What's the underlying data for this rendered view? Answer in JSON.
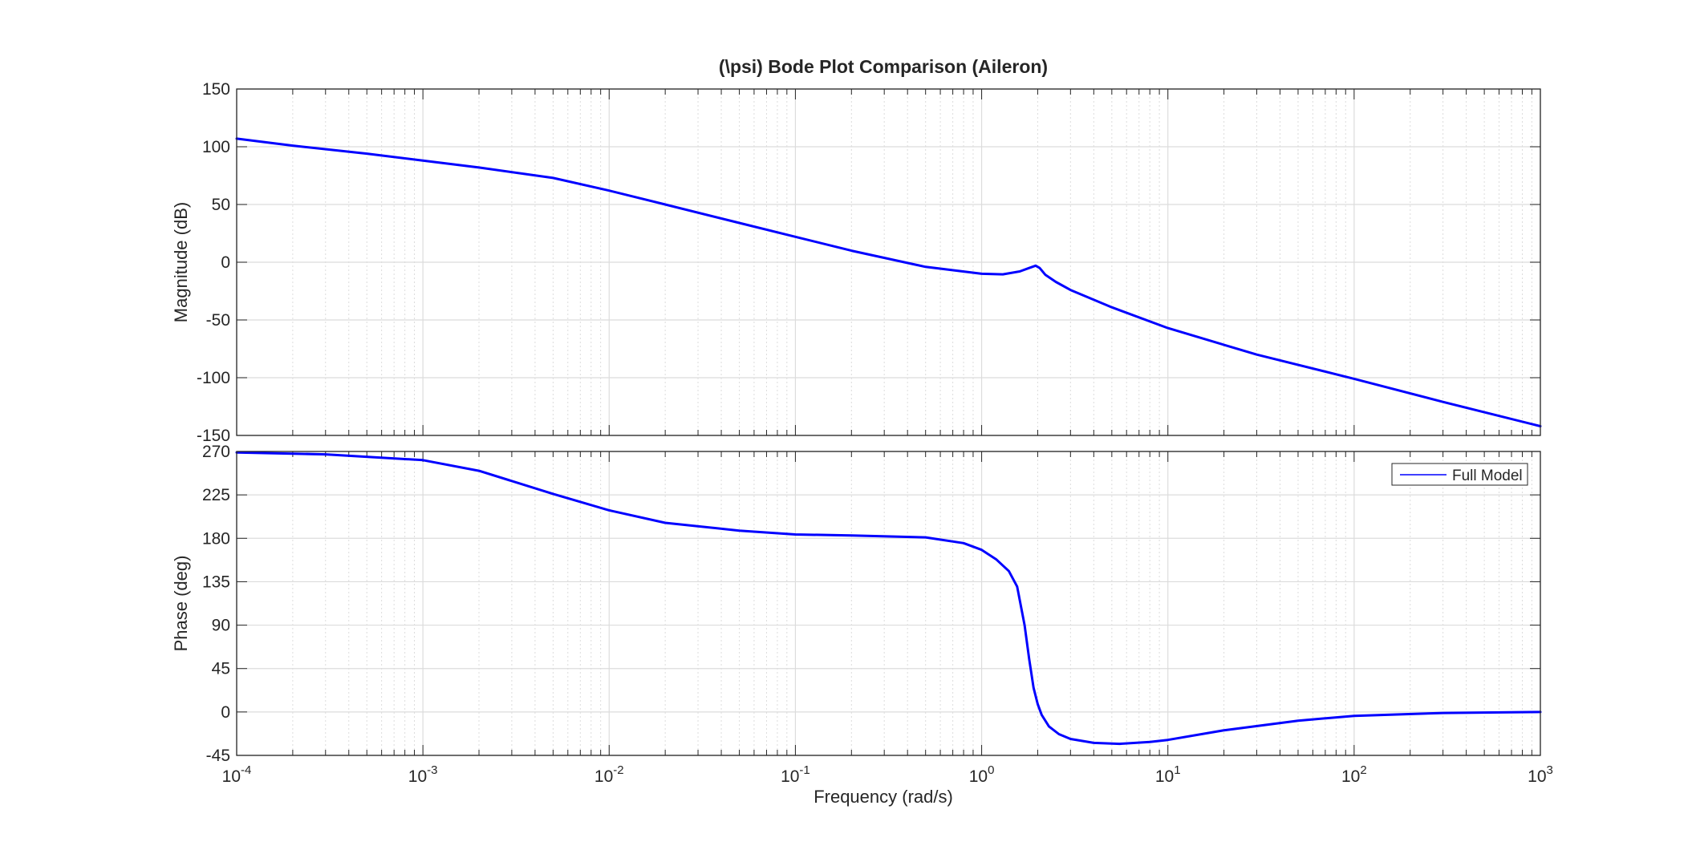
{
  "chart_data": {
    "type": "line",
    "title": "(\\psi) Bode Plot Comparison (Aileron)",
    "xlabel": "Frequency  (rad/s)",
    "x_scale": "log",
    "xlim": [
      0.0001,
      1000
    ],
    "x_ticks": [
      {
        "value": 0.0001,
        "base": "10",
        "exp": "-4"
      },
      {
        "value": 0.001,
        "base": "10",
        "exp": "-3"
      },
      {
        "value": 0.01,
        "base": "10",
        "exp": "-2"
      },
      {
        "value": 0.1,
        "base": "10",
        "exp": "-1"
      },
      {
        "value": 1,
        "base": "10",
        "exp": "0"
      },
      {
        "value": 10,
        "base": "10",
        "exp": "1"
      },
      {
        "value": 100,
        "base": "10",
        "exp": "2"
      },
      {
        "value": 1000,
        "base": "10",
        "exp": "3"
      }
    ],
    "grid": true,
    "line_color": "#0000ff",
    "panels": [
      {
        "ylabel": "Magnitude (dB)",
        "ylim": [
          -150,
          150
        ],
        "y_ticks": [
          150,
          100,
          50,
          0,
          -50,
          -100,
          -150
        ],
        "y_tick_labels": [
          "150",
          "100",
          "50",
          "0",
          "-50",
          "-100",
          "-150"
        ],
        "series": [
          {
            "x": [
              0.0001,
              0.0002,
              0.0005,
              0.001,
              0.002,
              0.005,
              0.01,
              0.02,
              0.05,
              0.1,
              0.2,
              0.5,
              1,
              1.3,
              1.6,
              1.8,
              1.95,
              2.05,
              2.2,
              2.5,
              3,
              5,
              10,
              30,
              100,
              300,
              1000
            ],
            "y": [
              107,
              101,
              94,
              88,
              82,
              73,
              62,
              50,
              34,
              22,
              10,
              -4,
              -10,
              -10.5,
              -8,
              -5,
              -3,
              -5,
              -11,
              -17,
              -24,
              -39,
              -57,
              -80,
              -101,
              -121,
              -142
            ]
          }
        ]
      },
      {
        "ylabel": "Phase (deg)",
        "ylim": [
          -45,
          270
        ],
        "y_ticks": [
          270,
          225,
          180,
          135,
          90,
          45,
          0,
          -45
        ],
        "y_tick_labels": [
          "270",
          "225",
          "180",
          "135",
          "90",
          "45",
          "0",
          "-45"
        ],
        "legend": {
          "position": "top-right",
          "entries": [
            "Full Model"
          ]
        },
        "series": [
          {
            "name": "Full Model",
            "x": [
              0.0001,
              0.0003,
              0.001,
              0.002,
              0.005,
              0.01,
              0.02,
              0.05,
              0.1,
              0.2,
              0.5,
              0.8,
              1.0,
              1.2,
              1.4,
              1.55,
              1.7,
              1.8,
              1.9,
              2.0,
              2.1,
              2.3,
              2.6,
              3,
              4,
              5.5,
              8,
              10,
              20,
              50,
              100,
              300,
              1000
            ],
            "y": [
              269,
              267,
              261,
              250,
              226,
              209,
              196,
              188,
              184,
              183,
              181,
              175,
              168,
              158,
              146,
              130,
              90,
              55,
              25,
              8,
              -3,
              -15,
              -23,
              -28,
              -32,
              -33,
              -31,
              -29,
              -19,
              -9,
              -4,
              -1,
              0
            ]
          }
        ]
      }
    ]
  }
}
